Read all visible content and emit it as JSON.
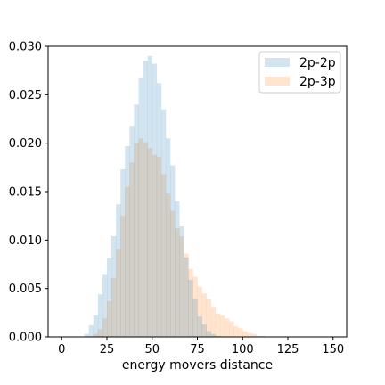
{
  "chart_data": {
    "type": "bar",
    "title": "",
    "xlabel": "energy movers distance",
    "ylabel": "",
    "xlim": [
      -7.5,
      157.5
    ],
    "ylim": [
      0,
      0.03
    ],
    "xticks": [
      0,
      25,
      50,
      75,
      100,
      125,
      150
    ],
    "yticks": [
      0.0,
      0.005,
      0.01,
      0.015,
      0.02,
      0.025,
      0.03
    ],
    "xtick_labels": [
      "0",
      "25",
      "50",
      "75",
      "100",
      "125",
      "150"
    ],
    "ytick_labels": [
      "0.000",
      "0.005",
      "0.010",
      "0.015",
      "0.020",
      "0.025",
      "0.030"
    ],
    "bin_width": 2.5,
    "grid": false,
    "legend_position": "top-right",
    "series": [
      {
        "name": "2p-2p",
        "color": "#1f77b4",
        "opacity": 0.2,
        "bin_start": 12.5,
        "values": [
          0.0003,
          0.0012,
          0.0022,
          0.0044,
          0.0064,
          0.0081,
          0.0104,
          0.0137,
          0.0173,
          0.0197,
          0.0218,
          0.024,
          0.0267,
          0.0285,
          0.029,
          0.0282,
          0.0262,
          0.0235,
          0.0205,
          0.0177,
          0.014,
          0.0114,
          0.0082,
          0.0059,
          0.0039,
          0.0021,
          0.0013,
          0.0006,
          0.0003,
          0.0001
        ]
      },
      {
        "name": "2p-3p",
        "color": "#ff7f0e",
        "opacity": 0.2,
        "bin_start": 17.5,
        "values": [
          0.0003,
          0.0008,
          0.0019,
          0.0037,
          0.0061,
          0.0091,
          0.0125,
          0.0155,
          0.018,
          0.02,
          0.0205,
          0.0201,
          0.0195,
          0.0188,
          0.0186,
          0.0168,
          0.0148,
          0.013,
          0.0112,
          0.0104,
          0.0086,
          0.007,
          0.0062,
          0.0052,
          0.0045,
          0.0039,
          0.0031,
          0.0024,
          0.0022,
          0.0019,
          0.0016,
          0.0011,
          0.0009,
          0.0006,
          0.0004,
          0.0003,
          0.0001,
          0.0001
        ]
      }
    ]
  }
}
